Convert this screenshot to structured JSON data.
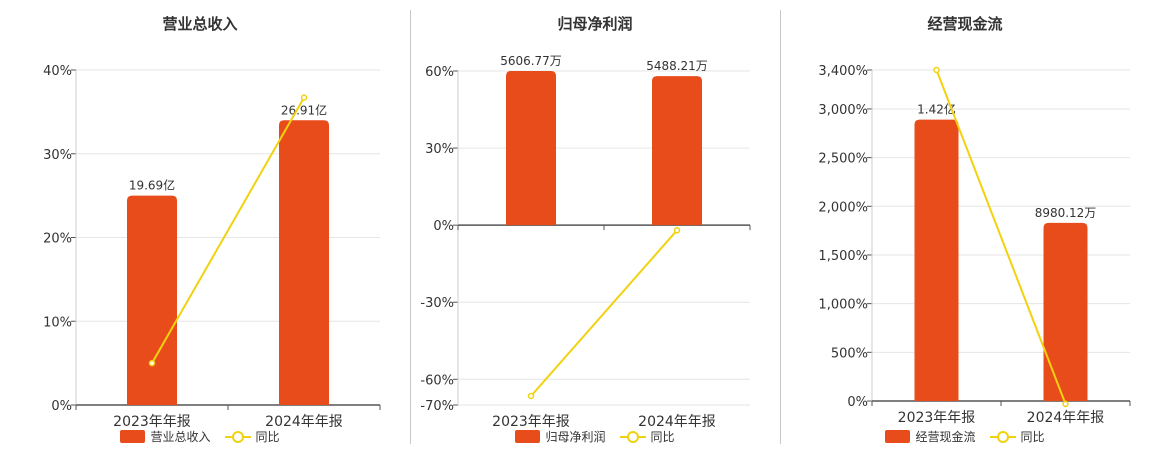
{
  "chart_data": [
    {
      "type": "bar",
      "title": "营业总收入",
      "categories": [
        "2023年年报",
        "2024年年报"
      ],
      "bar_series_name": "营业总收入",
      "bar_values": [
        25,
        34
      ],
      "bar_labels": [
        "19.69亿",
        "26.91亿"
      ],
      "line_series_name": "同比",
      "line_values": [
        5,
        36.7
      ],
      "ylim": [
        0,
        40
      ],
      "yticks": [
        0,
        10,
        20,
        30,
        40
      ],
      "ytick_labels": [
        "0%",
        "10%",
        "20%",
        "30%",
        "40%"
      ],
      "grid": true,
      "legend": "bottom"
    },
    {
      "type": "bar",
      "title": "归母净利润",
      "categories": [
        "2023年年报",
        "2024年年报"
      ],
      "bar_series_name": "归母净利润",
      "bar_values": [
        60,
        58
      ],
      "bar_labels": [
        "5606.77万",
        "5488.21万"
      ],
      "line_series_name": "同比",
      "line_values": [
        -66.5,
        -2
      ],
      "ylim": [
        -70,
        60
      ],
      "yticks": [
        -70,
        -60,
        -30,
        0,
        30,
        60
      ],
      "ytick_labels": [
        "-70%",
        "-60%",
        "-30%",
        "0%",
        "30%",
        "60%"
      ],
      "grid": true,
      "legend": "bottom"
    },
    {
      "type": "bar",
      "title": "经营现金流",
      "categories": [
        "2023年年报",
        "2024年年报"
      ],
      "bar_series_name": "经营现金流",
      "bar_values": [
        2890,
        1830
      ],
      "bar_labels": [
        "1.42亿",
        "8980.12万"
      ],
      "line_series_name": "同比",
      "line_values": [
        3400,
        -30
      ],
      "ylim": [
        0,
        3400
      ],
      "yticks": [
        0,
        500,
        1000,
        1500,
        2000,
        2500,
        3000,
        3400
      ],
      "ytick_labels": [
        "0%",
        "500%",
        "1,000%",
        "1,500%",
        "2,000%",
        "2,500%",
        "3,000%",
        "3,400%"
      ],
      "grid": true,
      "legend": "bottom"
    }
  ],
  "colors": {
    "bar": "#e84c1b",
    "line": "#f2d20f",
    "grid": "#e6e6e6",
    "axis": "#555555",
    "text": "#333333"
  }
}
